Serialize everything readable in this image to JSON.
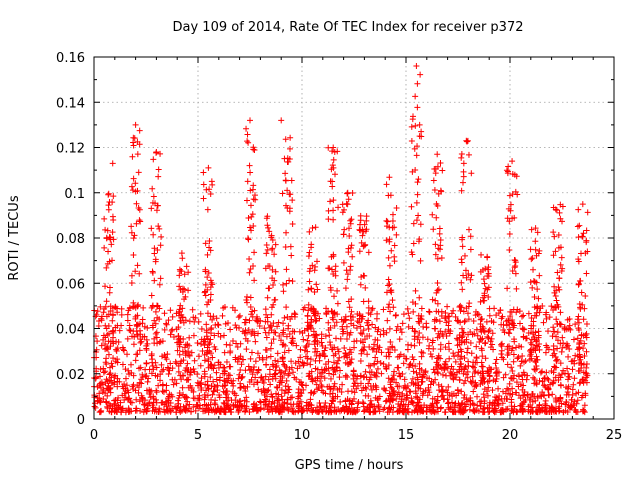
{
  "chart_data": {
    "type": "scatter",
    "title": "Day 109 of 2014, Rate Of TEC Index for receiver p372",
    "xlabel": "GPS time / hours",
    "ylabel": "ROTI / TECUs",
    "xlim": [
      0,
      25
    ],
    "ylim": [
      0,
      0.16
    ],
    "xticks": [
      0,
      5,
      10,
      15,
      20,
      25
    ],
    "yticks": [
      0,
      0.02,
      0.04,
      0.06,
      0.08,
      0.1,
      0.12,
      0.14,
      0.16
    ],
    "xtick_labels": [
      "0",
      "5",
      "10",
      "15",
      "20",
      "25"
    ],
    "ytick_labels": [
      "0",
      "0.02",
      "0.04",
      "0.06",
      "0.08",
      "0.1",
      "0.12",
      "0.14",
      "0.16"
    ],
    "grid": true,
    "marker": "+",
    "marker_color": "#ff0000",
    "x_data_range": [
      0,
      23.7
    ],
    "typical_y_range": [
      0.003,
      0.05
    ],
    "notable_points": [
      {
        "x": 15.5,
        "y": 0.156
      },
      {
        "x": 2.0,
        "y": 0.13
      },
      {
        "x": 7.5,
        "y": 0.132
      },
      {
        "x": 9.0,
        "y": 0.132
      },
      {
        "x": 17.9,
        "y": 0.123
      },
      {
        "x": 11.5,
        "y": 0.12
      },
      {
        "x": 3.0,
        "y": 0.118
      },
      {
        "x": 16.5,
        "y": 0.117
      },
      {
        "x": 20.1,
        "y": 0.114
      },
      {
        "x": 0.9,
        "y": 0.113
      },
      {
        "x": 5.5,
        "y": 0.111
      },
      {
        "x": 12.2,
        "y": 0.1
      },
      {
        "x": 23.5,
        "y": 0.095
      }
    ],
    "peak_bursts": [
      {
        "x": 0.7,
        "y": 0.1
      },
      {
        "x": 2.0,
        "y": 0.13
      },
      {
        "x": 3.0,
        "y": 0.118
      },
      {
        "x": 4.3,
        "y": 0.075
      },
      {
        "x": 5.5,
        "y": 0.111
      },
      {
        "x": 7.5,
        "y": 0.132
      },
      {
        "x": 8.5,
        "y": 0.095
      },
      {
        "x": 9.3,
        "y": 0.125
      },
      {
        "x": 10.5,
        "y": 0.085
      },
      {
        "x": 11.5,
        "y": 0.12
      },
      {
        "x": 12.2,
        "y": 0.1
      },
      {
        "x": 13.0,
        "y": 0.09
      },
      {
        "x": 14.3,
        "y": 0.108
      },
      {
        "x": 15.5,
        "y": 0.156
      },
      {
        "x": 16.5,
        "y": 0.117
      },
      {
        "x": 17.9,
        "y": 0.123
      },
      {
        "x": 18.8,
        "y": 0.075
      },
      {
        "x": 20.1,
        "y": 0.114
      },
      {
        "x": 21.2,
        "y": 0.085
      },
      {
        "x": 22.3,
        "y": 0.095
      },
      {
        "x": 23.5,
        "y": 0.095
      }
    ]
  }
}
